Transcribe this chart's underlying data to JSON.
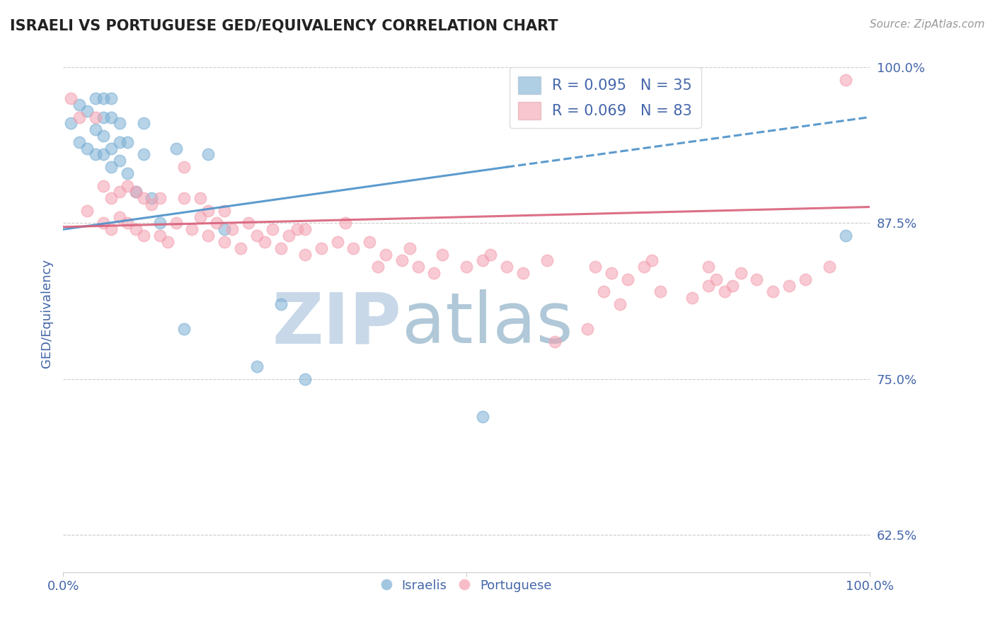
{
  "title": "ISRAELI VS PORTUGUESE GED/EQUIVALENCY CORRELATION CHART",
  "source_text": "Source: ZipAtlas.com",
  "ylabel": "GED/Equivalency",
  "xlim": [
    0,
    1
  ],
  "ylim": [
    0.595,
    1.01
  ],
  "yticks": [
    0.625,
    0.75,
    0.875,
    1.0
  ],
  "ytick_labels": [
    "62.5%",
    "75.0%",
    "87.5%",
    "100.0%"
  ],
  "israeli_R": 0.095,
  "israeli_N": 35,
  "portuguese_R": 0.069,
  "portuguese_N": 83,
  "israeli_color": "#7BAFD4",
  "portuguese_color": "#F4A0B0",
  "trend_israeli_color": "#4A90C8",
  "trend_portuguese_color": "#D9607A",
  "watermark_zip_color": "#C8D8E8",
  "watermark_atlas_color": "#B0C8D8",
  "title_fontsize": 15,
  "tick_label_color": "#4466AA",
  "legend_label_color": "#4466AA",
  "israeli_x": [
    0.01,
    0.02,
    0.02,
    0.03,
    0.03,
    0.04,
    0.04,
    0.04,
    0.05,
    0.05,
    0.05,
    0.05,
    0.06,
    0.06,
    0.06,
    0.06,
    0.07,
    0.07,
    0.07,
    0.08,
    0.08,
    0.09,
    0.1,
    0.1,
    0.11,
    0.12,
    0.14,
    0.15,
    0.18,
    0.2,
    0.24,
    0.27,
    0.3,
    0.52,
    0.97
  ],
  "israeli_y": [
    0.955,
    0.94,
    0.97,
    0.935,
    0.965,
    0.93,
    0.95,
    0.975,
    0.93,
    0.945,
    0.96,
    0.975,
    0.92,
    0.935,
    0.96,
    0.975,
    0.925,
    0.94,
    0.955,
    0.915,
    0.94,
    0.9,
    0.93,
    0.955,
    0.895,
    0.875,
    0.935,
    0.79,
    0.93,
    0.87,
    0.76,
    0.81,
    0.75,
    0.72,
    0.865
  ],
  "portuguese_x": [
    0.01,
    0.02,
    0.03,
    0.04,
    0.05,
    0.05,
    0.06,
    0.06,
    0.07,
    0.07,
    0.08,
    0.08,
    0.09,
    0.09,
    0.1,
    0.1,
    0.11,
    0.12,
    0.12,
    0.13,
    0.14,
    0.15,
    0.15,
    0.16,
    0.17,
    0.17,
    0.18,
    0.18,
    0.19,
    0.2,
    0.2,
    0.21,
    0.22,
    0.23,
    0.24,
    0.25,
    0.26,
    0.27,
    0.28,
    0.29,
    0.3,
    0.3,
    0.32,
    0.34,
    0.35,
    0.36,
    0.38,
    0.39,
    0.4,
    0.42,
    0.43,
    0.44,
    0.46,
    0.47,
    0.5,
    0.52,
    0.53,
    0.55,
    0.57,
    0.6,
    0.61,
    0.65,
    0.66,
    0.67,
    0.68,
    0.69,
    0.7,
    0.72,
    0.73,
    0.74,
    0.78,
    0.8,
    0.8,
    0.81,
    0.82,
    0.83,
    0.84,
    0.86,
    0.88,
    0.9,
    0.92,
    0.95,
    0.97
  ],
  "portuguese_y": [
    0.975,
    0.96,
    0.885,
    0.96,
    0.875,
    0.905,
    0.87,
    0.895,
    0.88,
    0.9,
    0.875,
    0.905,
    0.87,
    0.9,
    0.865,
    0.895,
    0.89,
    0.865,
    0.895,
    0.86,
    0.875,
    0.895,
    0.92,
    0.87,
    0.88,
    0.895,
    0.865,
    0.885,
    0.875,
    0.86,
    0.885,
    0.87,
    0.855,
    0.875,
    0.865,
    0.86,
    0.87,
    0.855,
    0.865,
    0.87,
    0.85,
    0.87,
    0.855,
    0.86,
    0.875,
    0.855,
    0.86,
    0.84,
    0.85,
    0.845,
    0.855,
    0.84,
    0.835,
    0.85,
    0.84,
    0.845,
    0.85,
    0.84,
    0.835,
    0.845,
    0.78,
    0.79,
    0.84,
    0.82,
    0.835,
    0.81,
    0.83,
    0.84,
    0.845,
    0.82,
    0.815,
    0.825,
    0.84,
    0.83,
    0.82,
    0.825,
    0.835,
    0.83,
    0.82,
    0.825,
    0.83,
    0.84,
    0.99
  ],
  "trend_israeli_x0": 0.0,
  "trend_israeli_y0": 0.87,
  "trend_israeli_x1": 0.55,
  "trend_israeli_y1": 0.92,
  "trend_israeli_x1_dash": 0.55,
  "trend_israeli_y1_dash": 0.92,
  "trend_israeli_x2": 1.0,
  "trend_israeli_y2": 0.96,
  "trend_portuguese_x0": 0.0,
  "trend_portuguese_y0": 0.872,
  "trend_portuguese_x1": 1.0,
  "trend_portuguese_y1": 0.888
}
